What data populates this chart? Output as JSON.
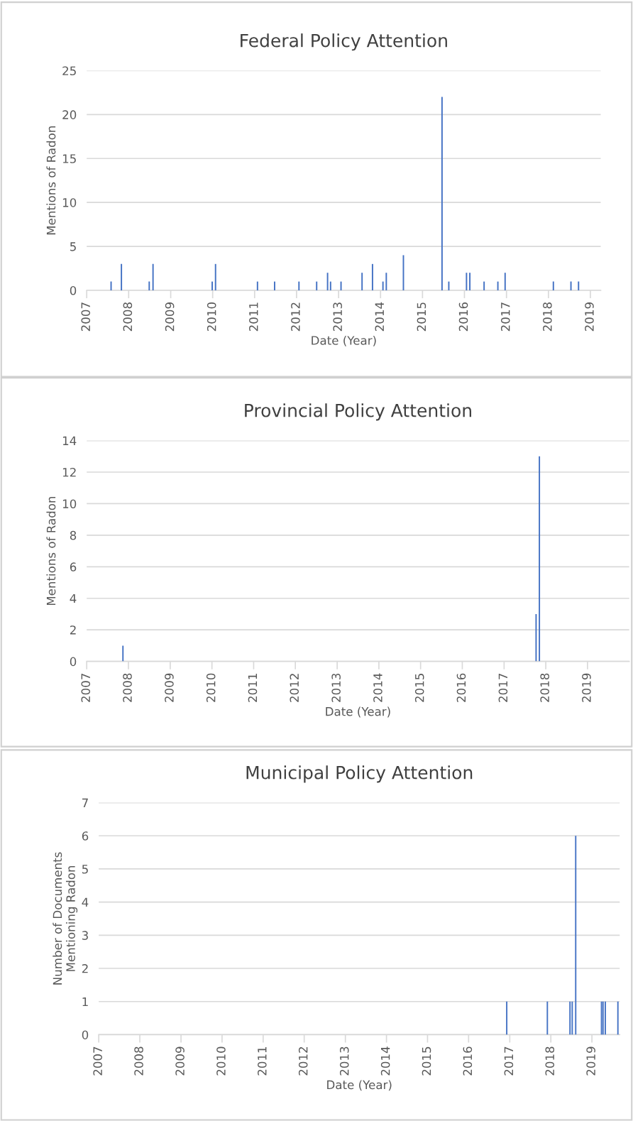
{
  "chart_data": [
    {
      "type": "bar",
      "title": "Federal Policy Attention",
      "xlabel": "Date (Year)",
      "ylabel": "Mentions of Radon",
      "x": [
        "2007-08-01",
        "2007-10-30",
        "2008-06-28",
        "2008-07-31",
        "2009-12-28",
        "2010-01-26",
        "2011-01-26",
        "2011-06-24",
        "2012-01-22",
        "2012-06-24",
        "2012-09-27",
        "2012-10-23",
        "2013-01-22",
        "2013-07-24",
        "2013-10-23",
        "2014-01-22",
        "2014-02-20",
        "2014-07-19",
        "2015-06-20",
        "2015-08-18",
        "2016-01-19",
        "2016-02-17",
        "2016-06-20",
        "2016-10-18",
        "2016-12-20",
        "2018-02-13",
        "2018-07-16",
        "2018-09-20"
      ],
      "values": [
        1,
        3,
        1,
        3,
        1,
        3,
        1,
        1,
        1,
        1,
        2,
        1,
        1,
        2,
        3,
        1,
        2,
        4,
        22,
        1,
        2,
        2,
        1,
        1,
        2,
        1,
        1,
        1
      ],
      "color": "#4472c4",
      "xlim": [
        "2007-01-01",
        "2019-04-01"
      ],
      "ylim": [
        0,
        25
      ],
      "yticks": [
        0,
        5,
        10,
        15,
        20,
        25
      ],
      "xticks": [
        {
          "value": "2007-01-01",
          "label": "2007"
        },
        {
          "value": "2008-01-01",
          "label": "2008"
        },
        {
          "value": "2009-01-01",
          "label": "2009"
        },
        {
          "value": "2010-01-01",
          "label": "2010"
        },
        {
          "value": "2011-01-01",
          "label": "2011"
        },
        {
          "value": "2012-01-01",
          "label": "2012"
        },
        {
          "value": "2013-01-01",
          "label": "2013"
        },
        {
          "value": "2014-01-01",
          "label": "2014"
        },
        {
          "value": "2015-01-01",
          "label": "2015"
        },
        {
          "value": "2016-01-01",
          "label": "2016"
        },
        {
          "value": "2017-01-01",
          "label": "2017"
        },
        {
          "value": "2018-01-01",
          "label": "2018"
        },
        {
          "value": "2019-01-01",
          "label": "2019"
        }
      ],
      "grid": "y"
    },
    {
      "type": "bar",
      "title": "Provincial Policy Attention",
      "xlabel": "Date (Year)",
      "ylabel": "Mentions of Radon",
      "x": [
        "2007-11-14",
        "2017-10-08",
        "2017-11-06"
      ],
      "values": [
        1,
        3,
        13
      ],
      "color": "#4472c4",
      "xlim": [
        "2007-01-01",
        "2020-01-01"
      ],
      "ylim": [
        0,
        14
      ],
      "yticks": [
        0,
        2,
        4,
        6,
        8,
        10,
        12,
        14
      ],
      "xticks": [
        {
          "value": "2007-01-01",
          "label": "2007"
        },
        {
          "value": "2008-01-01",
          "label": "2008"
        },
        {
          "value": "2009-01-01",
          "label": "2009"
        },
        {
          "value": "2010-01-01",
          "label": "2010"
        },
        {
          "value": "2011-01-01",
          "label": "2011"
        },
        {
          "value": "2012-01-01",
          "label": "2012"
        },
        {
          "value": "2013-01-01",
          "label": "2013"
        },
        {
          "value": "2014-01-01",
          "label": "2014"
        },
        {
          "value": "2015-01-01",
          "label": "2015"
        },
        {
          "value": "2016-01-01",
          "label": "2016"
        },
        {
          "value": "2017-01-01",
          "label": "2017"
        },
        {
          "value": "2018-01-01",
          "label": "2018"
        },
        {
          "value": "2019-01-01",
          "label": "2019"
        }
      ],
      "grid": "y"
    },
    {
      "type": "bar",
      "title": "Municipal Policy Attention",
      "xlabel": "Date (Year)",
      "ylabel": "Number of Documents\nMentioning Radon",
      "x": [
        "2016-12-05",
        "2017-12-01",
        "2018-06-20",
        "2018-07-10",
        "2018-08-10",
        "2019-03-27",
        "2019-04-10",
        "2019-04-30",
        "2019-08-20"
      ],
      "values": [
        1,
        1,
        1,
        1,
        6,
        1,
        1,
        1,
        1
      ],
      "color": "#4472c4",
      "xlim": [
        "2007-01-01",
        "2019-09-05"
      ],
      "ylim": [
        0,
        7
      ],
      "yticks": [
        0,
        1,
        2,
        3,
        4,
        5,
        6,
        7
      ],
      "xticks": [
        {
          "value": "2007-01-01",
          "label": "2007"
        },
        {
          "value": "2008-01-01",
          "label": "2008"
        },
        {
          "value": "2009-01-01",
          "label": "2009"
        },
        {
          "value": "2010-01-01",
          "label": "2010"
        },
        {
          "value": "2011-01-01",
          "label": "2011"
        },
        {
          "value": "2012-01-01",
          "label": "2012"
        },
        {
          "value": "2013-01-01",
          "label": "2013"
        },
        {
          "value": "2014-01-01",
          "label": "2014"
        },
        {
          "value": "2015-01-01",
          "label": "2015"
        },
        {
          "value": "2016-01-01",
          "label": "2016"
        },
        {
          "value": "2017-01-01",
          "label": "2017"
        },
        {
          "value": "2018-01-01",
          "label": "2018"
        },
        {
          "value": "2019-01-01",
          "label": "2019"
        }
      ],
      "grid": "y"
    }
  ]
}
